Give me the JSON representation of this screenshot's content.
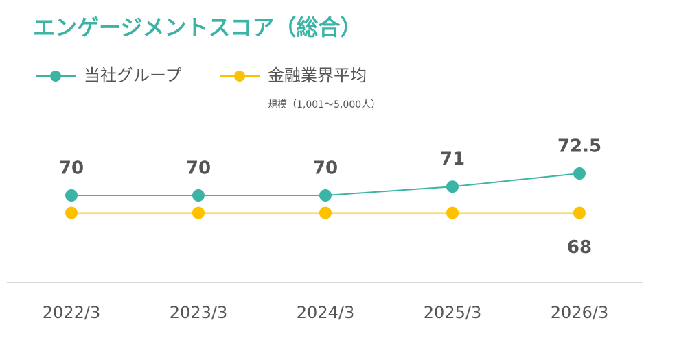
{
  "chart_data": {
    "type": "line",
    "title": "エンゲージメントスコア（総合）",
    "categories": [
      "2022/3",
      "2023/3",
      "2024/3",
      "2025/3",
      "2026/3"
    ],
    "series": [
      {
        "name": "当社グループ",
        "color": "#3cb4a5",
        "values": [
          70,
          70,
          70,
          71,
          72.5
        ],
        "show_labels": "all"
      },
      {
        "name": "金融業界平均",
        "legend_note": "規模（1,001～5,000人）",
        "color": "#fdc100",
        "values": [
          68,
          68,
          68,
          68,
          68
        ],
        "show_labels": "last"
      }
    ],
    "ylim": [
      60,
      80
    ],
    "grid": false
  }
}
